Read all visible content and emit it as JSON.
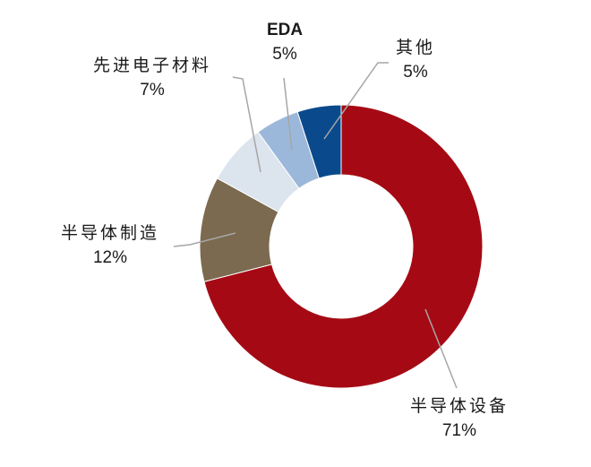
{
  "chart_data": {
    "type": "pie",
    "subtype": "donut",
    "title": "",
    "start_angle_deg": 0,
    "direction": "clockwise",
    "categories": [
      "半导体设备",
      "半导体制造",
      "先进电子材料",
      "EDA",
      "其他"
    ],
    "values": [
      71,
      12,
      7,
      5,
      5
    ],
    "labels": [
      "71%",
      "12%",
      "7%",
      "5%",
      "5%"
    ],
    "colors": [
      "#A50A14",
      "#7B6A4F",
      "#DCE4EE",
      "#9BB8DA",
      "#0A4A8C"
    ],
    "legend": "none (leader-line labels)"
  },
  "labels": {
    "s0": {
      "name": "半导体设备",
      "pct": "71%"
    },
    "s1": {
      "name": "半导体制造",
      "pct": "12%"
    },
    "s2": {
      "name": "先进电子材料",
      "pct": "7%"
    },
    "s3": {
      "name": "EDA",
      "pct": "5%"
    },
    "s4": {
      "name": "其他",
      "pct": "5%"
    }
  }
}
